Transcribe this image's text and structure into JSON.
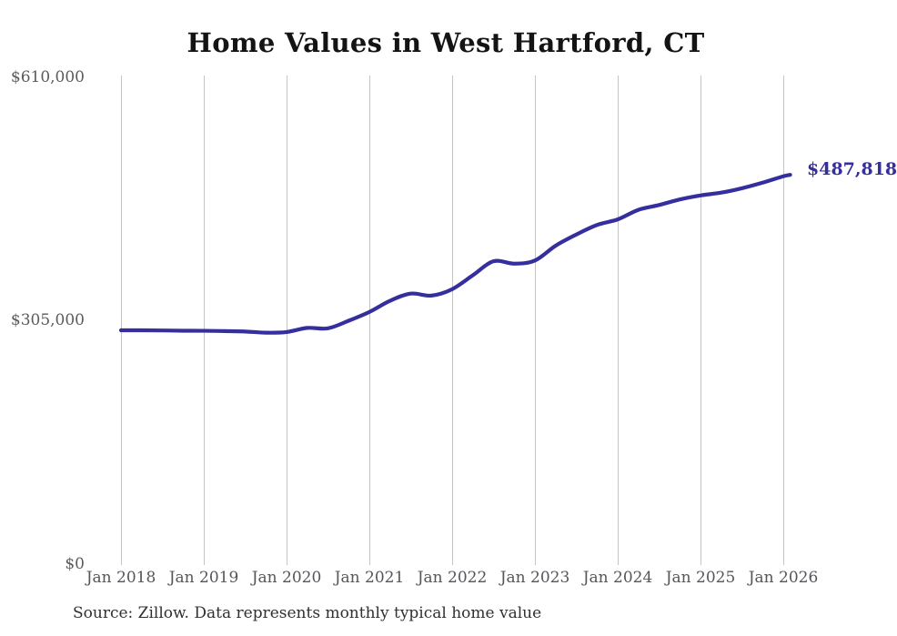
{
  "chart_data": {
    "type": "line",
    "title": "Home Values in West Hartford, CT",
    "source_note": "Source: Zillow. Data represents monthly typical home value",
    "legend": "none",
    "grid": "vertical-yearly-gridlines-only",
    "y_axis": {
      "min": 0,
      "max": 610000,
      "tick_values": [
        610000,
        305000,
        0
      ],
      "tick_labels": [
        "$610,000",
        "$305,000",
        "$0"
      ]
    },
    "x_axis": {
      "tick_labels": [
        "Jan 2018",
        "Jan 2019",
        "Jan 2020",
        "Jan 2021",
        "Jan 2022",
        "Jan 2023",
        "Jan 2024",
        "Jan 2025",
        "Jan 2026"
      ]
    },
    "series": [
      {
        "name": "Monthly typical home value",
        "end_label": "$487,818",
        "end_value": 487818,
        "points": [
          {
            "date": "2018-01",
            "value": 293000
          },
          {
            "date": "2018-04",
            "value": 293000
          },
          {
            "date": "2018-07",
            "value": 292800
          },
          {
            "date": "2018-10",
            "value": 292500
          },
          {
            "date": "2019-01",
            "value": 292400
          },
          {
            "date": "2019-04",
            "value": 292000
          },
          {
            "date": "2019-07",
            "value": 291500
          },
          {
            "date": "2019-10",
            "value": 290000
          },
          {
            "date": "2020-01",
            "value": 290800
          },
          {
            "date": "2020-04",
            "value": 296000
          },
          {
            "date": "2020-07",
            "value": 295500
          },
          {
            "date": "2020-10",
            "value": 305000
          },
          {
            "date": "2021-01",
            "value": 316000
          },
          {
            "date": "2021-04",
            "value": 330000
          },
          {
            "date": "2021-07",
            "value": 339000
          },
          {
            "date": "2021-10",
            "value": 336500
          },
          {
            "date": "2022-01",
            "value": 344500
          },
          {
            "date": "2022-04",
            "value": 362000
          },
          {
            "date": "2022-07",
            "value": 379500
          },
          {
            "date": "2022-10",
            "value": 376500
          },
          {
            "date": "2023-01",
            "value": 380500
          },
          {
            "date": "2023-04",
            "value": 399000
          },
          {
            "date": "2023-07",
            "value": 413000
          },
          {
            "date": "2023-10",
            "value": 425000
          },
          {
            "date": "2024-01",
            "value": 432000
          },
          {
            "date": "2024-04",
            "value": 444000
          },
          {
            "date": "2024-07",
            "value": 450000
          },
          {
            "date": "2024-10",
            "value": 457000
          },
          {
            "date": "2025-01",
            "value": 462000
          },
          {
            "date": "2025-04",
            "value": 465500
          },
          {
            "date": "2025-07",
            "value": 471000
          },
          {
            "date": "2025-10",
            "value": 478000
          },
          {
            "date": "2026-01",
            "value": 486000
          },
          {
            "date": "2026-02",
            "value": 487818
          }
        ]
      }
    ],
    "colors": {
      "line": "#342e9f",
      "end_label_text": "#342e9f",
      "gridline": "#c4c4c4",
      "title_text": "#141414",
      "axis_text": "#58595b",
      "source_text": "#303030"
    }
  }
}
